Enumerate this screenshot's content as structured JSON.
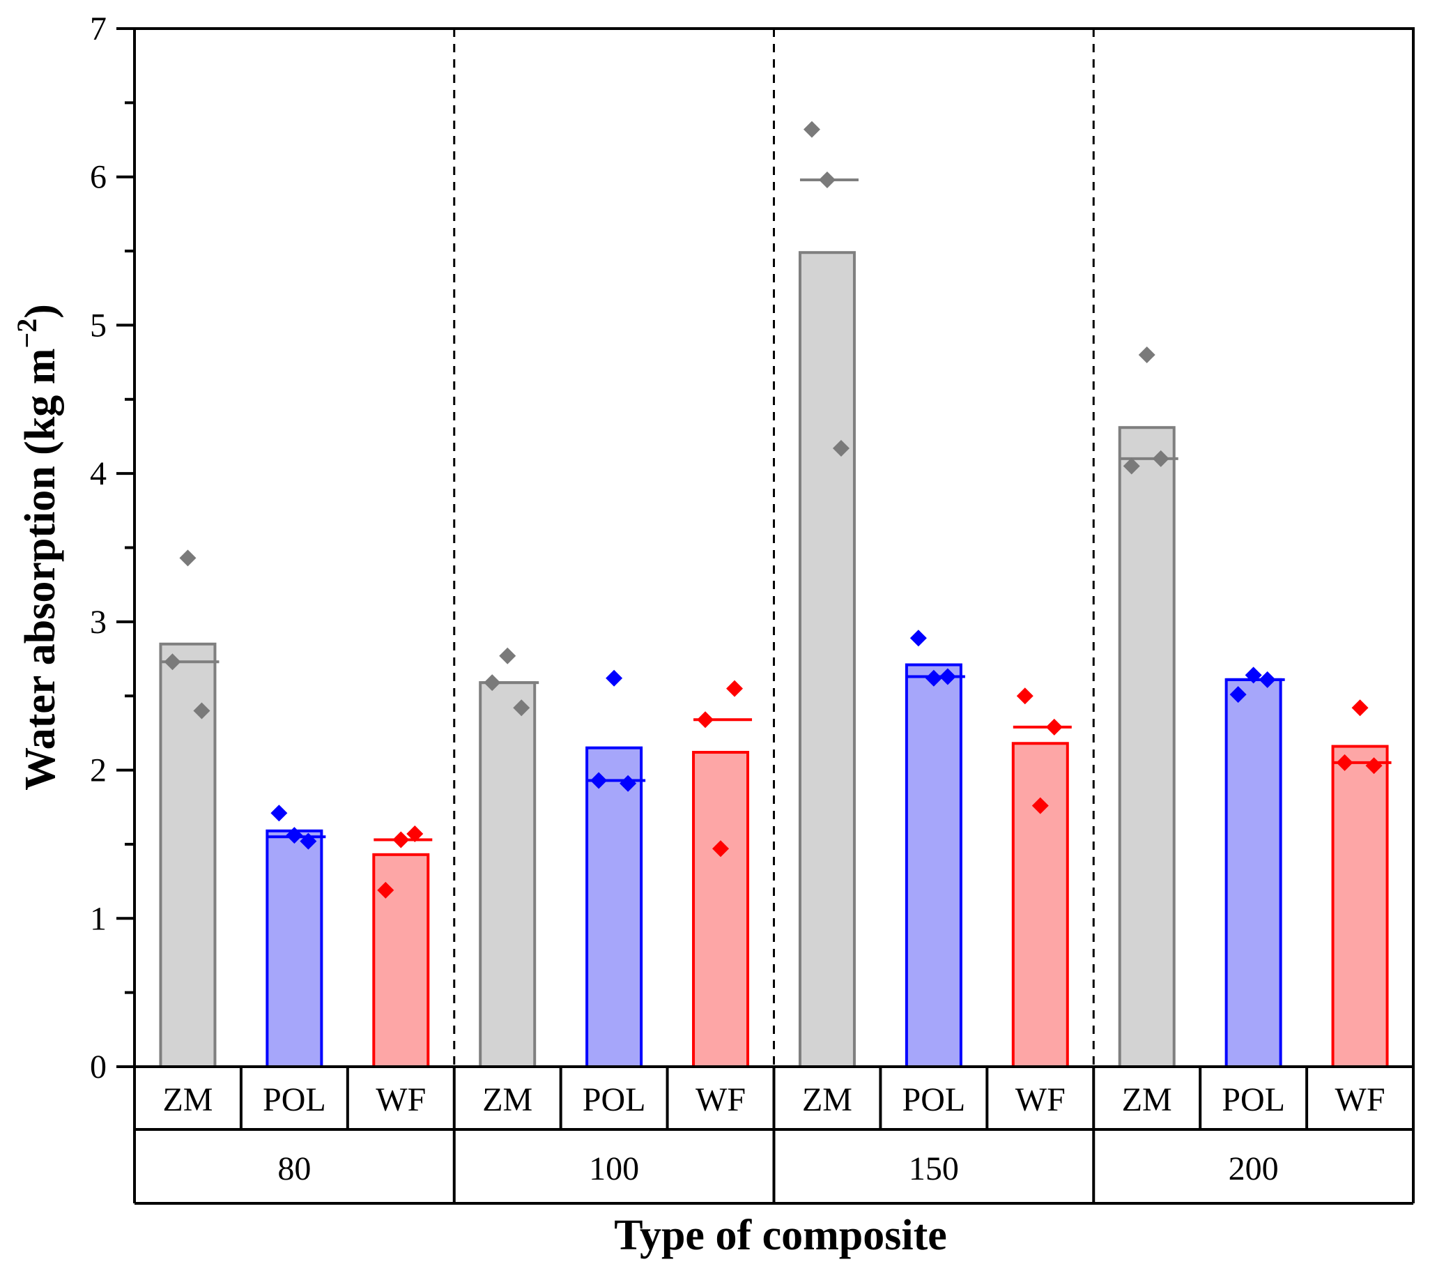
{
  "chart_data": {
    "type": "bar",
    "title": "",
    "xlabel": "Type of composite",
    "ylabel": "Water absorption (kg m",
    "ylabel_sup": "−2",
    "ylabel_close": ")",
    "ylim": [
      0,
      7
    ],
    "yticks": [
      "0",
      "1",
      "2",
      "3",
      "4",
      "5",
      "6",
      "7"
    ],
    "grid": false,
    "groups": [
      "80",
      "100",
      "150",
      "200"
    ],
    "series_names": [
      "ZM",
      "POL",
      "WF"
    ],
    "colors": {
      "ZM": {
        "stroke": "#7f7f7f",
        "fill": "#d3d3d3",
        "point": "#7a7a7a"
      },
      "POL": {
        "stroke": "#0000ff",
        "fill": "#a6a6fa",
        "point": "#0000ff"
      },
      "WF": {
        "stroke": "#ff0000",
        "fill": "#fda6a6",
        "point": "#ff0000"
      }
    },
    "bars": [
      {
        "group": "80",
        "series": "ZM",
        "mean": 2.85,
        "median": 2.73,
        "points": [
          2.73,
          3.43,
          2.4
        ]
      },
      {
        "group": "80",
        "series": "POL",
        "mean": 1.59,
        "median": 1.55,
        "points": [
          1.71,
          1.56,
          1.52
        ]
      },
      {
        "group": "80",
        "series": "WF",
        "mean": 1.43,
        "median": 1.53,
        "points": [
          1.19,
          1.53,
          1.57
        ]
      },
      {
        "group": "100",
        "series": "ZM",
        "mean": 2.59,
        "median": 2.59,
        "points": [
          2.59,
          2.77,
          2.42
        ]
      },
      {
        "group": "100",
        "series": "POL",
        "mean": 2.15,
        "median": 1.93,
        "points": [
          1.93,
          2.62,
          1.91
        ]
      },
      {
        "group": "100",
        "series": "WF",
        "mean": 2.12,
        "median": 2.34,
        "points": [
          2.34,
          1.47,
          2.55
        ]
      },
      {
        "group": "150",
        "series": "ZM",
        "mean": 5.49,
        "median": 5.98,
        "points": [
          6.32,
          5.98,
          4.17
        ]
      },
      {
        "group": "150",
        "series": "POL",
        "mean": 2.71,
        "median": 2.63,
        "points": [
          2.89,
          2.62,
          2.63
        ]
      },
      {
        "group": "150",
        "series": "WF",
        "mean": 2.18,
        "median": 2.29,
        "points": [
          2.5,
          1.76,
          2.29
        ]
      },
      {
        "group": "200",
        "series": "ZM",
        "mean": 4.31,
        "median": 4.1,
        "points": [
          4.05,
          4.8,
          4.1
        ]
      },
      {
        "group": "200",
        "series": "POL",
        "mean": 2.61,
        "median": 2.61,
        "points": [
          2.51,
          2.64,
          2.61
        ]
      },
      {
        "group": "200",
        "series": "WF",
        "mean": 2.16,
        "median": 2.05,
        "points": [
          2.05,
          2.42,
          2.03
        ]
      }
    ]
  }
}
